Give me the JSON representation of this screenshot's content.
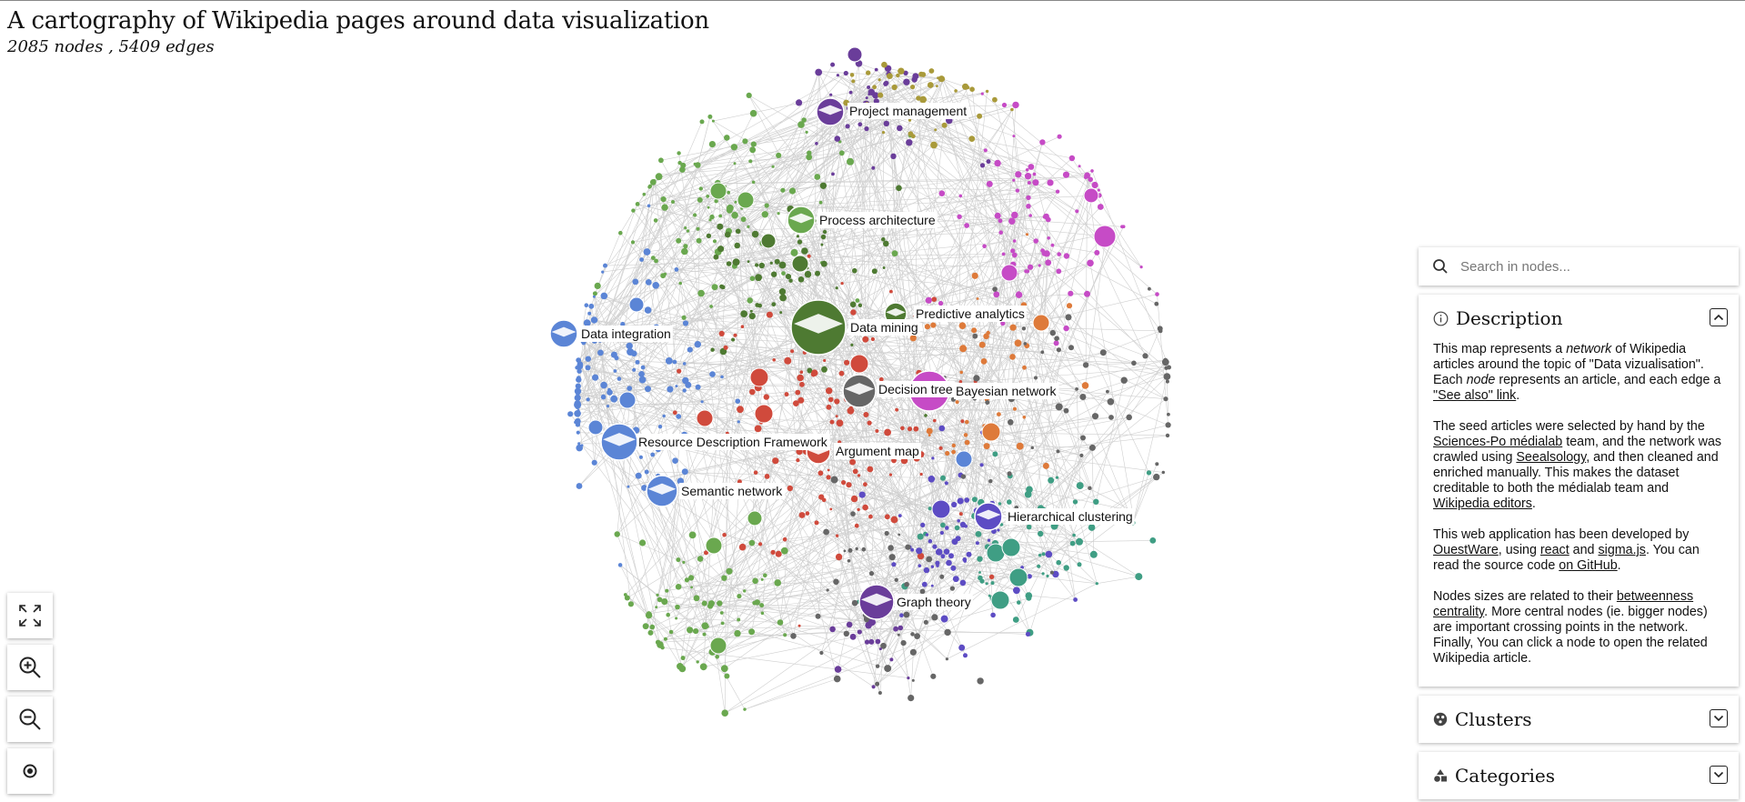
{
  "header": {
    "title": "A cartography of Wikipedia pages around data visualization",
    "stats": "2085 nodes , 5409 edges"
  },
  "controls": [
    {
      "name": "fullscreen-icon"
    },
    {
      "name": "zoom-in-icon"
    },
    {
      "name": "zoom-out-icon"
    },
    {
      "name": "reset-view-icon"
    }
  ],
  "search": {
    "placeholder": "Search in nodes..."
  },
  "description": {
    "heading": "Description",
    "p1": {
      "a": "This map represents a ",
      "b": "network",
      "c": " of Wikipedia articles around the topic of \"Data vizualisation\". Each ",
      "d": "node",
      "e": " represents an article, and each edge a ",
      "link": "\"See also\" link",
      "f": "."
    },
    "p2": {
      "a": "The seed articles were selected by hand by the ",
      "link1": "Sciences-Po médialab",
      "b": " team, and the network was crawled using ",
      "link2": "Seealsology",
      "c": ", and then cleaned and enriched manually. This makes the dataset creditable to both the médialab team and ",
      "link3": "Wikipedia editors",
      "d": "."
    },
    "p3": {
      "a": "This web application has been developed by ",
      "link1": "OuestWare",
      "b": ", using ",
      "link2": "react",
      "c": " and ",
      "link3": "sigma.js",
      "d": ". You can read the source code ",
      "link4": "on GitHub",
      "e": "."
    },
    "p4": {
      "a": "Nodes sizes are related to their ",
      "link": "betweenness centrality",
      "b": ". More central nodes (ie. bigger nodes) are important crossing points in the network. Finally, You can click a node to open the related Wikipedia article."
    }
  },
  "clusters": {
    "heading": "Clusters"
  },
  "categories": {
    "heading": "Categories"
  },
  "node_labels": [
    "Project management",
    "Process architecture",
    "Data integration",
    "Data mining",
    "Predictive analytics",
    "Decision tree",
    "Bayesian network",
    "Resource Description Framework",
    "Argument map",
    "Semantic network",
    "Hierarchical clustering",
    "Graph theory"
  ],
  "colors": {
    "green_dark": "#4e7a32",
    "green_light": "#6aa84f",
    "blue": "#5b85d6",
    "purple": "#6a3d9a",
    "magenta": "#c64bc6",
    "olive": "#a99a3a",
    "red": "#d04a3c",
    "orange": "#de7a3a",
    "teal": "#3f9e84",
    "indigo": "#5d4cc4",
    "grey": "#666666",
    "edge": "#cfcfcf"
  }
}
